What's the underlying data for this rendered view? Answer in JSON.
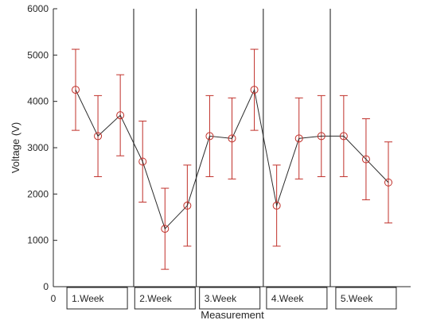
{
  "chart_data": {
    "type": "line",
    "title": "",
    "xlabel": "Measurement",
    "ylabel": "Voltage (V)",
    "xlim": [
      0,
      15
    ],
    "ylim": [
      0,
      6000
    ],
    "y_ticks": [
      0,
      1000,
      2000,
      3000,
      4000,
      5000,
      6000
    ],
    "x_ticks": [
      0
    ],
    "grid": false,
    "series": [
      {
        "x": [
          1,
          2,
          3,
          4,
          5,
          6,
          7,
          8,
          9,
          10,
          11,
          12,
          13,
          14,
          15
        ],
        "values": [
          4250,
          3250,
          3700,
          2700,
          1250,
          1750,
          3250,
          3200,
          4250,
          1750,
          3200,
          3250,
          3250,
          2750,
          2250
        ],
        "error": [
          875,
          875,
          875,
          875,
          875,
          875,
          875,
          875,
          875,
          875,
          875,
          875,
          875,
          875,
          875
        ],
        "line_color": "#2b2b2b",
        "marker_color": "#c0302a",
        "marker": "circle"
      }
    ],
    "week_dividers": [
      3.6,
      6.4,
      9.4,
      12.4
    ],
    "week_labels": [
      "1.Week",
      "2.Week",
      "3.Week",
      "4.Week",
      "5.Week"
    ],
    "colors": {
      "axis": "#262626",
      "divider": "#3a3a3a",
      "error_bar": "#c0302a"
    }
  }
}
